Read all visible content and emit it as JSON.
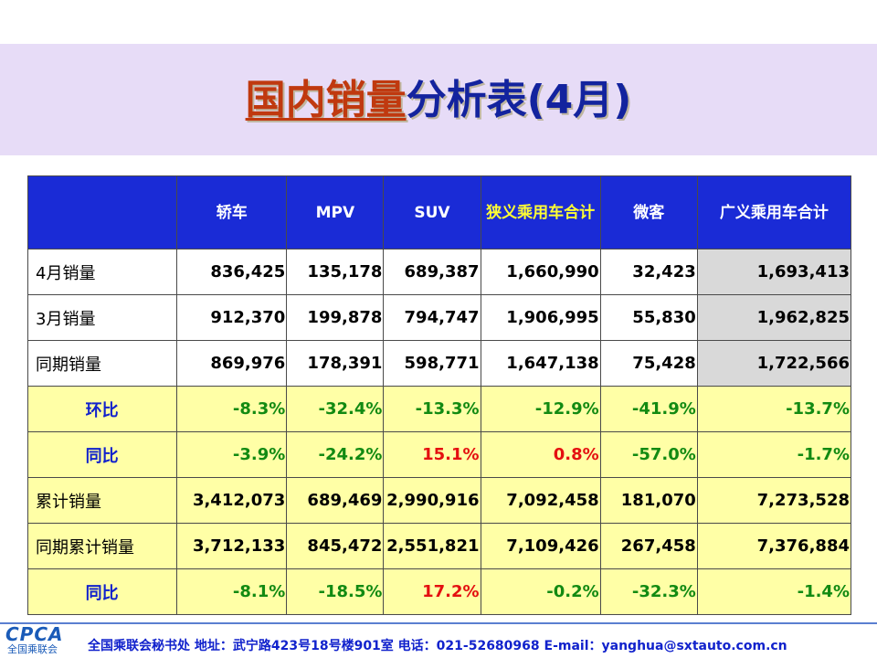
{
  "title": {
    "highlight": "国内销量",
    "rest": "分析表(4月)"
  },
  "table": {
    "headers": [
      "",
      "轿车",
      "MPV",
      "SUV",
      "狭义乘用车合计",
      "微客",
      "广义乘用车合计"
    ],
    "rows": [
      {
        "label": "4月销量",
        "values": [
          "836,425",
          "135,178",
          "689,387",
          "1,660,990",
          "32,423",
          "1,693,413"
        ]
      },
      {
        "label": "3月销量",
        "values": [
          "912,370",
          "199,878",
          "794,747",
          "1,906,995",
          "55,830",
          "1,962,825"
        ]
      },
      {
        "label": "同期销量",
        "values": [
          "869,976",
          "178,391",
          "598,771",
          "1,647,138",
          "75,428",
          "1,722,566"
        ]
      },
      {
        "label": "环比",
        "values": [
          "-8.3%",
          "-32.4%",
          "-13.3%",
          "-12.9%",
          "-41.9%",
          "-13.7%"
        ]
      },
      {
        "label": "同比",
        "values": [
          "-3.9%",
          "-24.2%",
          "15.1%",
          "0.8%",
          "-57.0%",
          "-1.7%"
        ]
      },
      {
        "label": "累计销量",
        "values": [
          "3,412,073",
          "689,469",
          "2,990,916",
          "7,092,458",
          "181,070",
          "7,273,528"
        ]
      },
      {
        "label": "同期累计销量",
        "values": [
          "3,712,133",
          "845,472",
          "2,551,821",
          "7,109,426",
          "267,458",
          "7,376,884"
        ]
      },
      {
        "label": "同比",
        "values": [
          "-8.1%",
          "-18.5%",
          "17.2%",
          "-0.2%",
          "-32.3%",
          "-1.4%"
        ]
      }
    ]
  },
  "footer": {
    "logo_text": "CPCA",
    "logo_sub": "全国乘联会",
    "text": "全国乘联会秘书处  地址：武宁路423号18号楼901室    电话：021-52680968   E-mail：yanghua@sxtauto.com.cn"
  },
  "colors": {
    "title_band": "#e7dcf7",
    "header_bg": "#1a2bd6",
    "pct_row_bg": "#ffffa6",
    "positive_green": "#128a12",
    "highlight_red": "#e41010"
  }
}
